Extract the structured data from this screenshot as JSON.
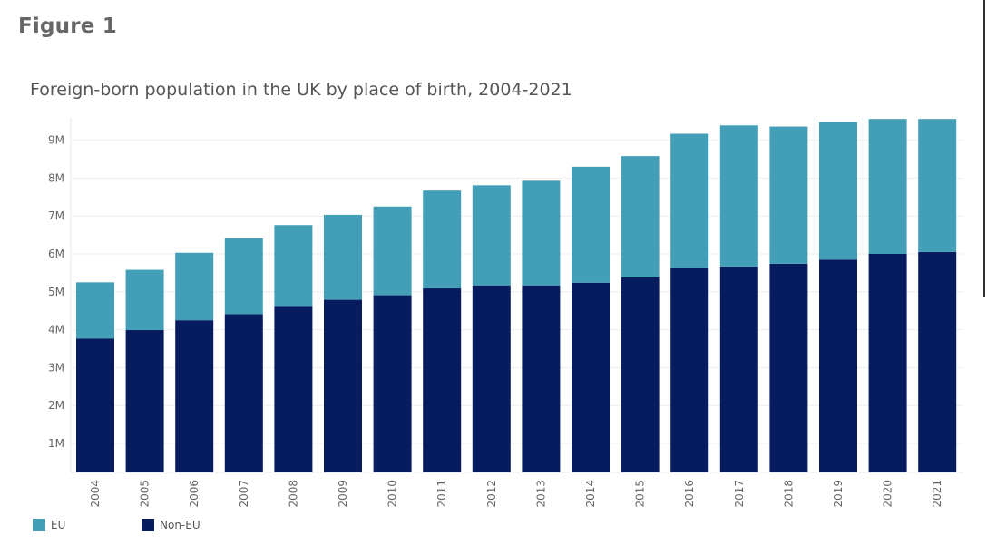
{
  "figure_label": "Figure 1",
  "chart_data": {
    "type": "bar",
    "stacked": true,
    "title": "Foreign-born population in the UK by place of birth, 2004-2021",
    "xlabel": "",
    "ylabel": "",
    "categories": [
      "2004",
      "2005",
      "2006",
      "2007",
      "2008",
      "2009",
      "2010",
      "2011",
      "2012",
      "2013",
      "2014",
      "2015",
      "2016",
      "2017",
      "2018",
      "2019",
      "2020",
      "2021"
    ],
    "series": [
      {
        "name": "Non-EU",
        "color": "#071c5e",
        "values": [
          3.77,
          3.99,
          4.25,
          4.41,
          4.63,
          4.79,
          4.91,
          5.09,
          5.17,
          5.17,
          5.24,
          5.38,
          5.62,
          5.67,
          5.74,
          5.85,
          6.0,
          6.05
        ]
      },
      {
        "name": "EU",
        "color": "#429fb7",
        "values": [
          1.48,
          1.59,
          1.78,
          2.0,
          2.13,
          2.24,
          2.34,
          2.58,
          2.64,
          2.76,
          3.06,
          3.2,
          3.55,
          3.72,
          3.62,
          3.63,
          3.56,
          3.51
        ]
      }
    ],
    "ylim": [
      0.25,
      9.75
    ],
    "yticks": [
      1,
      2,
      3,
      4,
      5,
      6,
      7,
      8,
      9
    ],
    "ytick_labels": [
      "1M",
      "2M",
      "3M",
      "4M",
      "5M",
      "6M",
      "7M",
      "8M",
      "9M"
    ],
    "grid": true,
    "legend_position": "bottom-left"
  },
  "legend": [
    {
      "label": "EU",
      "color": "#429fb7"
    },
    {
      "label": "Non-EU",
      "color": "#071c5e"
    }
  ]
}
